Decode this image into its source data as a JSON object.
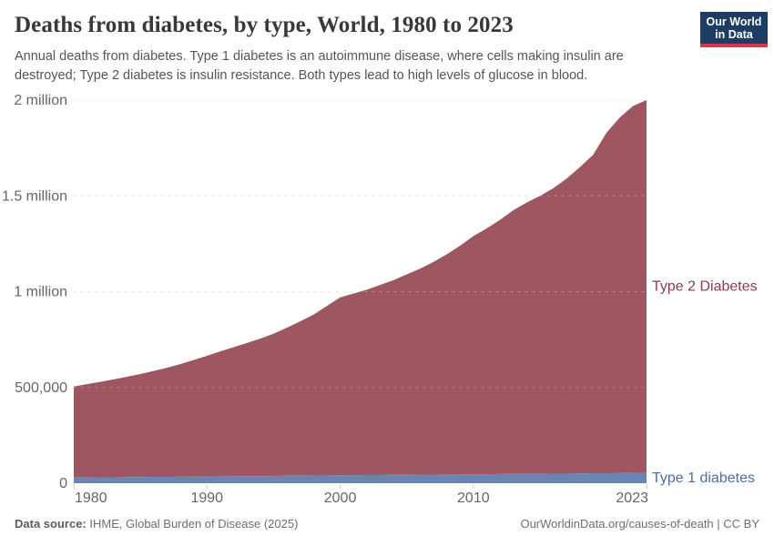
{
  "header": {
    "title": "Deaths from diabetes, by type, World, 1980 to 2023",
    "subtitle_line1": "Annual deaths from diabetes. Type 1 diabetes is an autoimmune disease, where cells making insulin are",
    "subtitle_line2": "destroyed; Type 2 diabetes is insulin resistance. Both types lead to high levels of glucose in blood.",
    "logo": {
      "line1": "Our World",
      "line2": "in Data",
      "bg_color": "#1d3d63",
      "bar_color": "#d7374d"
    }
  },
  "footer": {
    "source_label": "Data source:",
    "source_text": " IHME, Global Burden of Disease (2025)",
    "link_text": "OurWorldinData.org/causes-of-death | CC BY"
  },
  "chart_data": {
    "type": "area",
    "stacked": true,
    "title": "Deaths from diabetes, by type, World, 1980 to 2023",
    "xlabel": "",
    "ylabel": "",
    "xlim": [
      1980,
      2023
    ],
    "ylim": [
      0,
      2000000
    ],
    "grid": "dashed-horizontal",
    "legend_position": "right-of-area",
    "x": [
      1980,
      1981,
      1982,
      1983,
      1984,
      1985,
      1986,
      1987,
      1988,
      1989,
      1990,
      1991,
      1992,
      1993,
      1994,
      1995,
      1996,
      1997,
      1998,
      1999,
      2000,
      2001,
      2002,
      2003,
      2004,
      2005,
      2006,
      2007,
      2008,
      2009,
      2010,
      2011,
      2012,
      2013,
      2014,
      2015,
      2016,
      2017,
      2018,
      2019,
      2020,
      2021,
      2022,
      2023
    ],
    "xticks": [
      {
        "v": 1980,
        "label": "1980"
      },
      {
        "v": 1990,
        "label": "1990"
      },
      {
        "v": 2000,
        "label": "2000"
      },
      {
        "v": 2010,
        "label": "2010"
      },
      {
        "v": 2023,
        "label": "2023"
      }
    ],
    "yticks": [
      {
        "v": 0,
        "label": "0"
      },
      {
        "v": 500000,
        "label": "500,000"
      },
      {
        "v": 1000000,
        "label": "1 million"
      },
      {
        "v": 1500000,
        "label": "1.5 million"
      },
      {
        "v": 2000000,
        "label": "2 million"
      }
    ],
    "series": [
      {
        "name": "Type 1 diabetes",
        "color": "#6c84b2",
        "label_color": "#4f6ba8",
        "values": [
          30000,
          30000,
          31000,
          31000,
          32000,
          32000,
          33000,
          33000,
          34000,
          34000,
          35000,
          36000,
          36000,
          37000,
          37000,
          38000,
          39000,
          39000,
          40000,
          41000,
          42000,
          42000,
          43000,
          43000,
          44000,
          44000,
          45000,
          45000,
          46000,
          46000,
          47000,
          47000,
          48000,
          48000,
          49000,
          49000,
          50000,
          50000,
          51000,
          52000,
          52000,
          53000,
          54000,
          55000
        ]
      },
      {
        "name": "Type 2 Diabetes",
        "color": "#9e5661",
        "label_color": "#8d3c4e",
        "values": [
          475000,
          487000,
          498000,
          511000,
          524000,
          538000,
          553000,
          570000,
          588000,
          609000,
          630000,
          652000,
          674000,
          695000,
          718000,
          742000,
          773000,
          806000,
          840000,
          884000,
          928000,
          948000,
          967000,
          992000,
          1016000,
          1046000,
          1075000,
          1110000,
          1149000,
          1194000,
          1243000,
          1283000,
          1327000,
          1377000,
          1416000,
          1451000,
          1490000,
          1540000,
          1599000,
          1663000,
          1778000,
          1857000,
          1916000,
          1945000
        ]
      }
    ]
  }
}
